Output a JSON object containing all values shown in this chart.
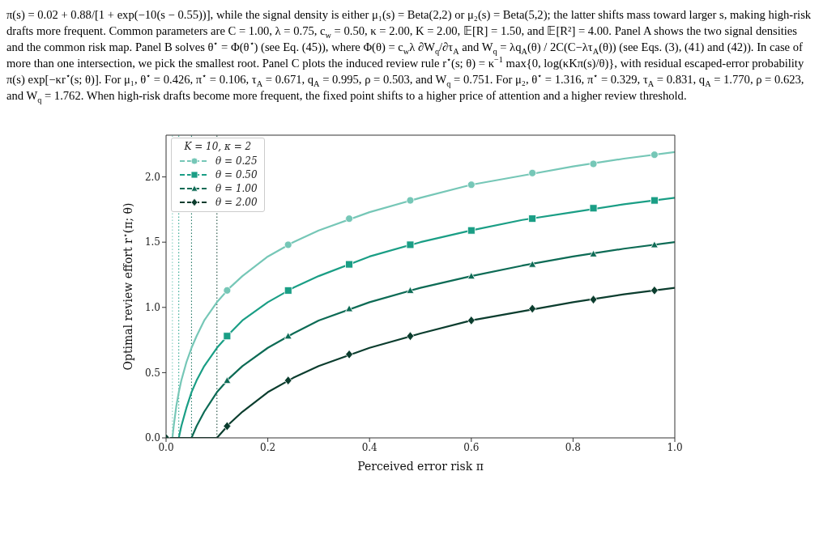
{
  "chart_data": {
    "type": "line",
    "annotations": [
      "π(s) = 0.02 + 0.88/[1 + exp(−10(s − 0.55))], while the signal density is either μ₁(s) = Beta(2,2) or μ₂(s) = Beta(5,2); the latter shifts mass toward larger s, making high-risk drafts more frequent. Common parameters are C = 1.00, λ = 0.75, c$_{w}$ = 0.50, κ = 2.00, K = 2.00, 𝔼[R] = 1.50, and 𝔼[R²] = 4.00. Panel A shows the two signal densities and the common risk map. Panel B solves θ$^{⋆}$ = Φ(θ$^{⋆}$) (see Eq. (45)), where Φ(θ) = c$_{w}$λ ∂W$_{q}$/∂τ$_{A}$ and W$_{q}$ = λq$_{A}$(θ) / 2C(C−λτ$_{A}$(θ)) (see Eqs. (3), (41) and (42)). In case of more than one intersection, we pick the smallest root. Panel C plots the induced review rule r$^{⋆}$(s; θ) = κ$^{−1}$ max{0, log(κKπ(s)/θ)}, with residual escaped-error probability π(s) exp[−κr$^{⋆}$(s; θ)]. For μ₁, θ$^{⋆}$ = 0.426, π$^{⋆}$ = 0.106, τ$_{A}$ = 0.671, q$_{A}$ = 0.995, ρ = 0.503, and W$_{q}$ = 0.751. For μ₂, θ$^{⋆}$ = 1.316, π$^{⋆}$ = 0.329, τ$_{A}$ = 0.831, q$_{A}$ = 1.770, ρ = 0.623, and W$_{q}$ = 1.762. When high-risk drafts become more frequent, the fixed point shifts to a higher price of attention and a higher review threshold."
    ],
    "xlabel": "Perceived error risk π",
    "ylabel": "Optimal review effort r$^{⋆}$(π; θ)",
    "legend_title": "K = 10, κ = 2",
    "legend": "top left",
    "grid": false,
    "line_style": "solid",
    "xlim": [
      0,
      1
    ],
    "ylim": [
      0,
      2.32
    ],
    "xticks": [
      {
        "value": 0,
        "label": "0.0"
      },
      {
        "value": 0.2,
        "label": "0.2"
      },
      {
        "value": 0.4,
        "label": "0.4"
      },
      {
        "value": 0.6,
        "label": "0.6"
      },
      {
        "value": 0.8,
        "label": "0.8"
      },
      {
        "value": 1,
        "label": "1.0"
      }
    ],
    "yticks": [
      {
        "value": 0,
        "label": "0.0"
      },
      {
        "value": 0.5,
        "label": "0.5"
      },
      {
        "value": 1,
        "label": "1.0"
      },
      {
        "value": 1.5,
        "label": "1.5"
      },
      {
        "value": 2,
        "label": "2.0"
      }
    ],
    "ref_lines": [
      {
        "axis": "x",
        "value": 0.0125,
        "color": "#76c7b7",
        "line_style": "dotted"
      },
      {
        "axis": "x",
        "value": 0.025,
        "color": "#1a9e85",
        "line_style": "dotted"
      },
      {
        "axis": "x",
        "value": 0.05,
        "color": "#0d6b55",
        "line_style": "dotted"
      },
      {
        "axis": "x",
        "value": 0.1,
        "color": "#0b3d2e",
        "line_style": "dotted"
      }
    ],
    "series": [
      {
        "name": "θ = 0.25",
        "color": "#76c7b7",
        "x": [
          0,
          0.0125,
          0.015,
          0.02,
          0.025,
          0.03,
          0.04,
          0.05,
          0.06,
          0.075,
          0.1,
          0.125,
          0.15,
          0.2,
          0.25,
          0.3,
          0.4,
          0.5,
          0.6,
          0.7,
          0.8,
          0.9,
          1.0
        ],
        "values": [
          0,
          0,
          0.09,
          0.24,
          0.35,
          0.44,
          0.58,
          0.69,
          0.78,
          0.9,
          1.04,
          1.15,
          1.24,
          1.39,
          1.5,
          1.59,
          1.73,
          1.84,
          1.94,
          2.01,
          2.08,
          2.14,
          2.19
        ]
      },
      {
        "name": "θ = 0.50",
        "color": "#1a9e85",
        "x": [
          0,
          0.025,
          0.03,
          0.04,
          0.05,
          0.06,
          0.075,
          0.1,
          0.125,
          0.15,
          0.2,
          0.25,
          0.3,
          0.4,
          0.5,
          0.6,
          0.7,
          0.8,
          0.9,
          1.0
        ],
        "values": [
          0,
          0,
          0.09,
          0.23,
          0.35,
          0.44,
          0.55,
          0.69,
          0.8,
          0.9,
          1.04,
          1.15,
          1.24,
          1.39,
          1.5,
          1.59,
          1.67,
          1.73,
          1.79,
          1.84
        ]
      },
      {
        "name": "θ = 1.00",
        "color": "#0d6b55",
        "x": [
          0,
          0.05,
          0.06,
          0.075,
          0.1,
          0.125,
          0.15,
          0.2,
          0.25,
          0.3,
          0.4,
          0.5,
          0.6,
          0.7,
          0.8,
          0.9,
          1.0
        ],
        "values": [
          0,
          0,
          0.09,
          0.2,
          0.35,
          0.46,
          0.55,
          0.69,
          0.8,
          0.9,
          1.04,
          1.15,
          1.24,
          1.32,
          1.39,
          1.45,
          1.5
        ]
      },
      {
        "name": "θ = 2.00",
        "color": "#0b3d2e",
        "x": [
          0,
          0.1,
          0.125,
          0.15,
          0.2,
          0.25,
          0.3,
          0.4,
          0.5,
          0.6,
          0.7,
          0.8,
          0.9,
          1.0
        ],
        "values": [
          0,
          0,
          0.11,
          0.2,
          0.35,
          0.46,
          0.55,
          0.69,
          0.8,
          0.9,
          0.97,
          1.04,
          1.1,
          1.15
        ]
      },
      {
        "type": "scatter",
        "color": "#76c7b7",
        "marker": "circle",
        "x": [
          0.12,
          0.24,
          0.36,
          0.48,
          0.6,
          0.72,
          0.84,
          0.96
        ],
        "values": [
          1.13,
          1.48,
          1.68,
          1.82,
          1.94,
          2.03,
          2.1,
          2.17
        ]
      },
      {
        "type": "scatter",
        "color": "#1a9e85",
        "marker": "square",
        "x": [
          0.12,
          0.24,
          0.36,
          0.48,
          0.6,
          0.72,
          0.84,
          0.96
        ],
        "values": [
          0.78,
          1.13,
          1.33,
          1.48,
          1.59,
          1.68,
          1.76,
          1.82
        ]
      },
      {
        "type": "scatter",
        "color": "#0d6b55",
        "marker": "triangle",
        "x": [
          0.12,
          0.24,
          0.36,
          0.48,
          0.6,
          0.72,
          0.84,
          0.96
        ],
        "values": [
          0.44,
          0.78,
          0.99,
          1.13,
          1.24,
          1.33,
          1.41,
          1.48
        ]
      },
      {
        "type": "scatter",
        "color": "#0b3d2e",
        "marker": "diamond",
        "x": [
          0,
          0.12,
          0.24,
          0.36,
          0.48,
          0.6,
          0.72,
          0.84,
          0.96
        ],
        "values": [
          0,
          0.09,
          0.44,
          0.64,
          0.78,
          0.9,
          0.99,
          1.06,
          1.13
        ]
      }
    ]
  }
}
